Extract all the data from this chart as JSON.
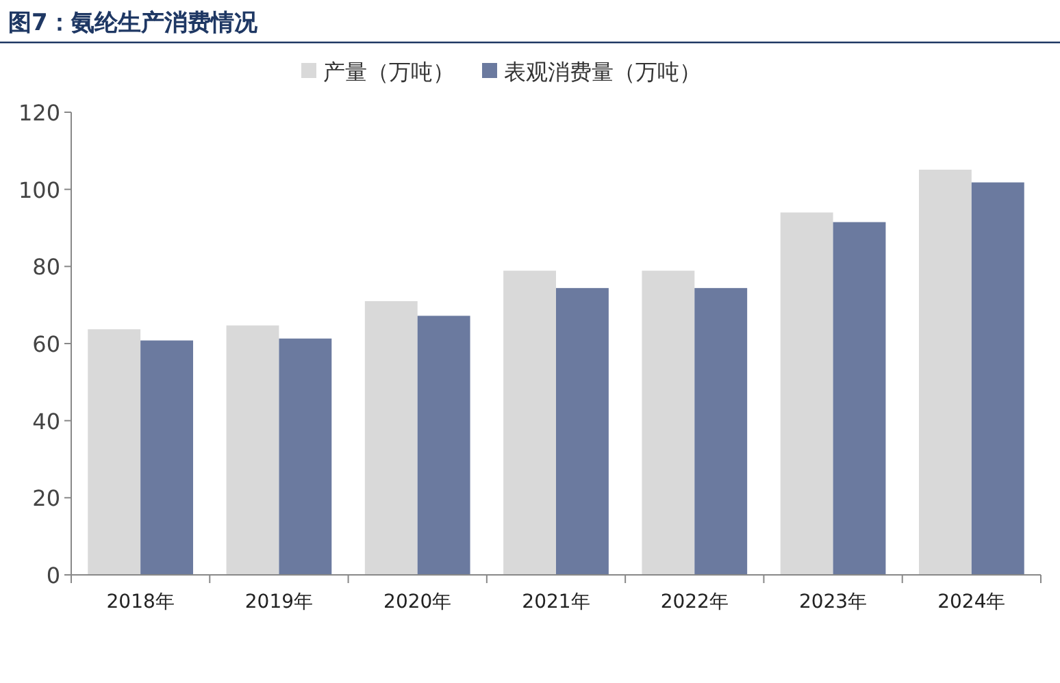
{
  "chart_data": {
    "type": "bar",
    "title": "图7：氨纶生产消费情况",
    "categories": [
      "2018年",
      "2019年",
      "2020年",
      "2021年",
      "2022年",
      "2023年",
      "2024年"
    ],
    "series": [
      {
        "name": "产量（万吨）",
        "color": "#d9d9d9",
        "values": [
          63.7,
          64.7,
          71.0,
          78.9,
          78.9,
          94.0,
          105.1
        ]
      },
      {
        "name": "表观消费量（万吨）",
        "color": "#6b7a9f",
        "values": [
          60.8,
          61.3,
          67.2,
          74.4,
          74.4,
          91.5,
          101.8
        ]
      }
    ],
    "ylim": [
      0,
      120
    ],
    "yticks": [
      0,
      20,
      40,
      60,
      80,
      100,
      120
    ],
    "legend": "top",
    "grid": false
  }
}
